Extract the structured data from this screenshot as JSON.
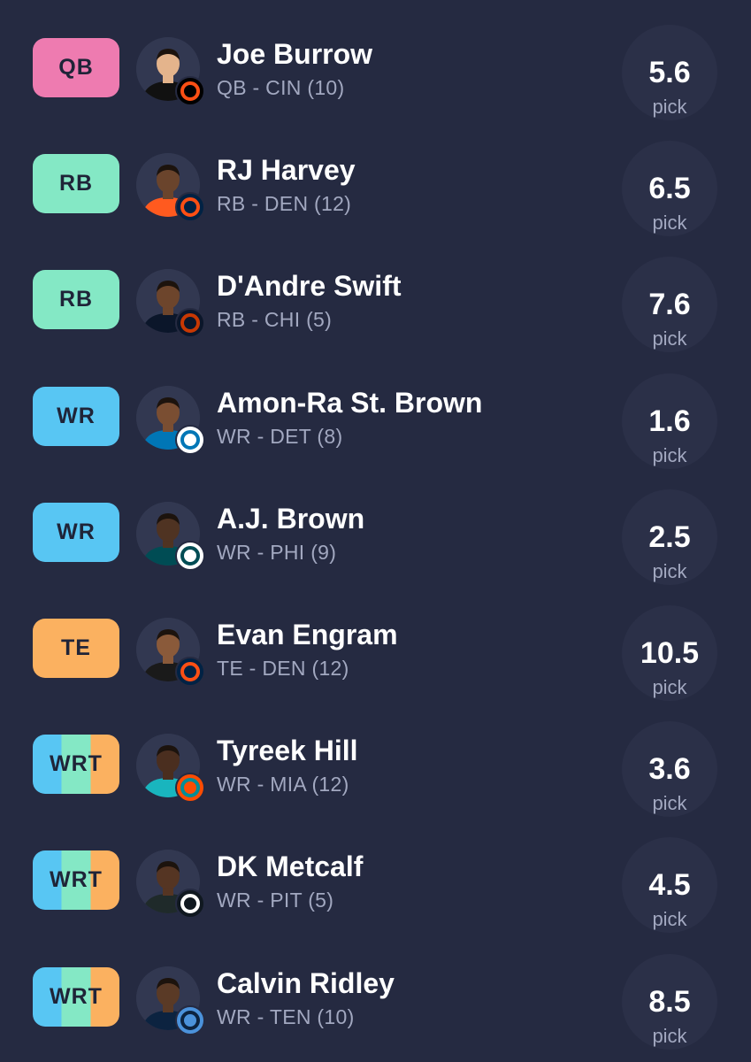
{
  "colors": {
    "background": "#252a41",
    "QB": "#ee7bb0",
    "RB": "#84e8c5",
    "WR": "#58c6f3",
    "TE": "#fbb160",
    "text_primary": "#ffffff",
    "text_secondary": "#a2a8c0"
  },
  "players": [
    {
      "slot": "QB",
      "slot_colors": [
        "#ee7bb0"
      ],
      "name": "Joe Burrow",
      "meta": "QB - CIN (10)",
      "pick_value": "5.6",
      "pick_label": "pick",
      "team_icon": "bengals-logo-icon",
      "team_colors": [
        "#fb4f14",
        "#000000"
      ],
      "jersey": "#111111",
      "skin": "#e4b48c"
    },
    {
      "slot": "RB",
      "slot_colors": [
        "#84e8c5"
      ],
      "name": "RJ Harvey",
      "meta": "RB - DEN (12)",
      "pick_value": "6.5",
      "pick_label": "pick",
      "team_icon": "broncos-logo-icon",
      "team_colors": [
        "#fb4f14",
        "#002244"
      ],
      "jersey": "#ff5a1f",
      "skin": "#6a442c"
    },
    {
      "slot": "RB",
      "slot_colors": [
        "#84e8c5"
      ],
      "name": "D'Andre Swift",
      "meta": "RB - CHI (5)",
      "pick_value": "7.6",
      "pick_label": "pick",
      "team_icon": "bears-logo-icon",
      "team_colors": [
        "#c83803",
        "#0b162a"
      ],
      "jersey": "#0b162a",
      "skin": "#6d452c"
    },
    {
      "slot": "WR",
      "slot_colors": [
        "#58c6f3"
      ],
      "name": "Amon-Ra St. Brown",
      "meta": "WR - DET (8)",
      "pick_value": "1.6",
      "pick_label": "pick",
      "team_icon": "lions-logo-icon",
      "team_colors": [
        "#0076b6",
        "#ffffff"
      ],
      "jersey": "#0076b6",
      "skin": "#7a4e32"
    },
    {
      "slot": "WR",
      "slot_colors": [
        "#58c6f3"
      ],
      "name": "A.J. Brown",
      "meta": "WR - PHI (9)",
      "pick_value": "2.5",
      "pick_label": "pick",
      "team_icon": "eagles-logo-icon",
      "team_colors": [
        "#004c54",
        "#ffffff"
      ],
      "jersey": "#004c54",
      "skin": "#4f3322"
    },
    {
      "slot": "TE",
      "slot_colors": [
        "#fbb160"
      ],
      "name": "Evan Engram",
      "meta": "TE - DEN (12)",
      "pick_value": "10.5",
      "pick_label": "pick",
      "team_icon": "broncos-logo-icon",
      "team_colors": [
        "#fb4f14",
        "#002244"
      ],
      "jersey": "#1a1a1a",
      "skin": "#8a5a3a"
    },
    {
      "slot": "WRT",
      "slot_colors": [
        "#58c6f3",
        "#84e8c5",
        "#fbb160"
      ],
      "name": "Tyreek Hill",
      "meta": "WR - MIA (12)",
      "pick_value": "3.6",
      "pick_label": "pick",
      "team_icon": "dolphins-logo-icon",
      "team_colors": [
        "#008e97",
        "#fc4c02"
      ],
      "jersey": "#19b5be",
      "skin": "#4a2e1f"
    },
    {
      "slot": "WRT",
      "slot_colors": [
        "#58c6f3",
        "#84e8c5",
        "#fbb160"
      ],
      "name": "DK Metcalf",
      "meta": "WR - PIT (5)",
      "pick_value": "4.5",
      "pick_label": "pick",
      "team_icon": "steelers-logo-icon",
      "team_colors": [
        "#ffffff",
        "#101820"
      ],
      "jersey": "#1f2a2a",
      "skin": "#553523"
    },
    {
      "slot": "WRT",
      "slot_colors": [
        "#58c6f3",
        "#84e8c5",
        "#fbb160"
      ],
      "name": "Calvin Ridley",
      "meta": "WR - TEN (10)",
      "pick_value": "8.5",
      "pick_label": "pick",
      "team_icon": "titans-logo-icon",
      "team_colors": [
        "#0c2340",
        "#4b92db"
      ],
      "jersey": "#0c2340",
      "skin": "#5a3a26"
    }
  ]
}
